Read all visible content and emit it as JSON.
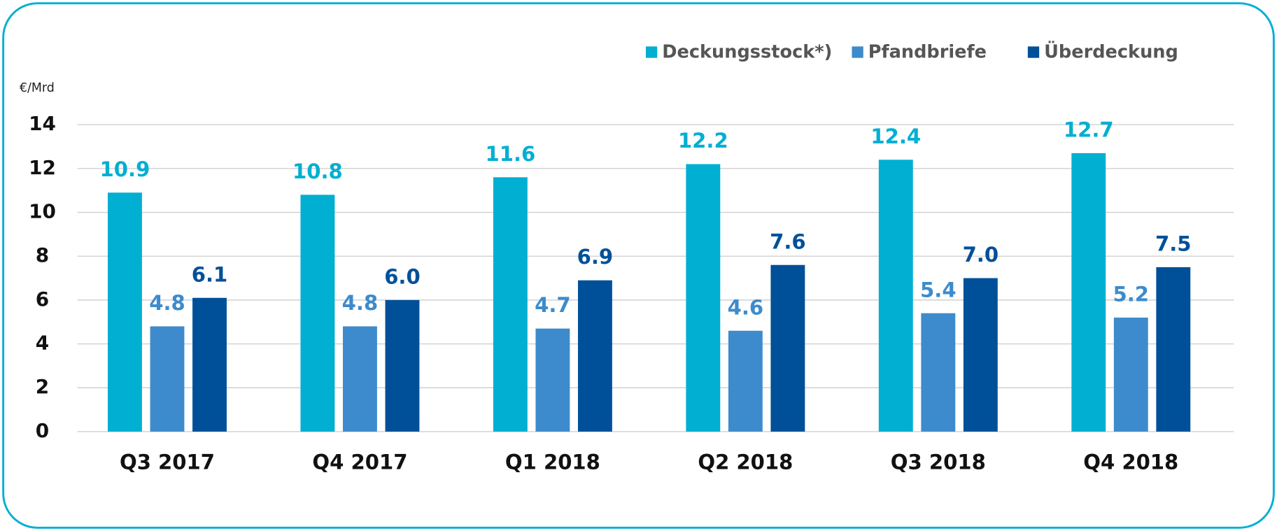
{
  "chart_data": {
    "type": "bar",
    "y_axis_label": "€/Mrd",
    "categories": [
      "Q3 2017",
      "Q4 2017",
      "Q1 2018",
      "Q2 2018",
      "Q3 2018",
      "Q4 2018"
    ],
    "series": [
      {
        "name": "Deckungsstock*)",
        "color": "#00afd2",
        "values": [
          10.9,
          10.8,
          11.6,
          12.2,
          12.4,
          12.7
        ],
        "value_labels": [
          "10.9",
          "10.8",
          "11.6",
          "12.2",
          "12.4",
          "12.7"
        ]
      },
      {
        "name": "Pfandbriefe",
        "color": "#3d8bcc",
        "values": [
          4.8,
          4.8,
          4.7,
          4.6,
          5.4,
          5.2
        ],
        "value_labels": [
          "4.8",
          "4.8",
          "4.7",
          "4.6",
          "5.4",
          "5.2"
        ]
      },
      {
        "name": "Überdeckung",
        "color": "#005099",
        "values": [
          6.1,
          6.0,
          6.9,
          7.6,
          7.0,
          7.5
        ],
        "value_labels": [
          "6.1",
          "6.0",
          "6.9",
          "7.6",
          "7.0",
          "7.5"
        ]
      }
    ],
    "ylim": [
      0,
      14
    ],
    "yticks": [
      0,
      2,
      4,
      6,
      8,
      10,
      12,
      14
    ],
    "grid": true,
    "legend": "top"
  }
}
